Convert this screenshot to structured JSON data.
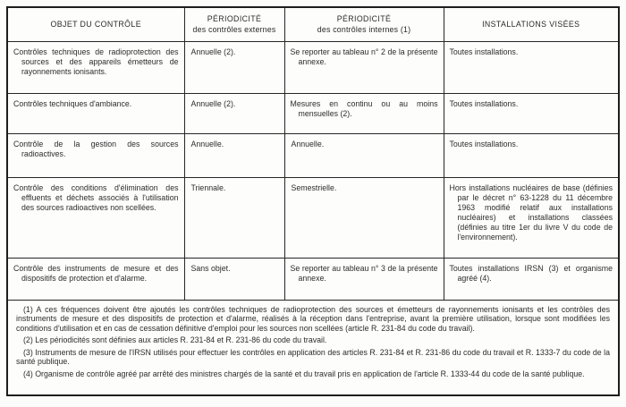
{
  "colors": {
    "outer_border": "#1d1d1d",
    "cell_border": "#262626",
    "text": "#2c2c2c",
    "background": "#fcfcfb"
  },
  "table": {
    "headers": [
      {
        "title": "OBJET DU CONTRÔLE",
        "subtitle": ""
      },
      {
        "title": "PÉRIODICITÉ",
        "subtitle": "des contrôles externes"
      },
      {
        "title": "PÉRIODICITÉ",
        "subtitle": "des contrôles internes (1)"
      },
      {
        "title": "INSTALLATIONS VISÉES",
        "subtitle": ""
      }
    ],
    "rows": [
      {
        "objet": "Contrôles techniques de radioprotection des sources et des appareils émetteurs de rayonnements ionisants.",
        "periodicite_externe": "Annuelle (2).",
        "periodicite_interne": "Se reporter au tableau n° 2 de la présente annexe.",
        "installations": "Toutes installations."
      },
      {
        "objet": "Contrôles techniques d'ambiance.",
        "periodicite_externe": "Annuelle (2).",
        "periodicite_interne": "Mesures en continu ou au moins mensuelles (2).",
        "installations": "Toutes installations."
      },
      {
        "objet": "Contrôle de la gestion des sources radioactives.",
        "periodicite_externe": "Annuelle.",
        "periodicite_interne": "Annuelle.",
        "installations": "Toutes installations."
      },
      {
        "objet": "Contrôle des conditions d'élimination des effluents et déchets associés à l'utilisation des sources radioactives non scellées.",
        "periodicite_externe": "Triennale.",
        "periodicite_interne": "Semestrielle.",
        "installations": "Hors installations nucléaires de base (définies par le décret n° 63-1228 du 11 décembre 1963 modifié relatif aux installations nucléaires) et installations classées (définies au titre 1er du livre V du code de l'environnement)."
      },
      {
        "objet": "Contrôle des instruments de mesure et des dispositifs de protection et d'alarme.",
        "periodicite_externe": "Sans objet.",
        "periodicite_interne": "Se reporter au tableau n° 3 de la présente annexe.",
        "installations": "Toutes installations IRSN (3) et organisme agréé (4)."
      }
    ]
  },
  "footnotes": [
    "(1) A ces fréquences doivent être ajoutés les contrôles techniques de radioprotection des sources et émetteurs de rayonnements ionisants et les contrôles des instruments de mesure et des dispositifs de protection et d'alarme, réalisés à la réception dans l'entreprise, avant la première utilisation, lorsque sont modifiées les conditions d'utilisation et en cas de cessation définitive d'emploi pour les sources non scellées (article R. 231-84 du code du travail).",
    "(2) Les périodicités sont définies aux articles R. 231-84 et R. 231-86 du code du travail.",
    "(3) Instruments de mesure de l'IRSN utilisés pour effectuer les contrôles en application des articles R. 231-84 et R. 231-86 du code du travail et R. 1333-7 du code de la santé publique.",
    "(4) Organisme de contrôle agréé par arrêté des ministres chargés de la santé et du travail pris en application de l'article R. 1333-44 du code de la santé publique."
  ]
}
